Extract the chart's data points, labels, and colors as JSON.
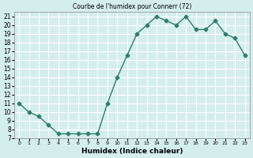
{
  "x": [
    0,
    1,
    2,
    3,
    4,
    5,
    6,
    7,
    8,
    9,
    10,
    11,
    12,
    13,
    14,
    15,
    16,
    17,
    18,
    19,
    20,
    21,
    22,
    23
  ],
  "y": [
    11.0,
    10.0,
    9.5,
    8.5,
    7.5,
    7.5,
    7.5,
    7.5,
    7.5,
    11.0,
    14.0,
    16.5,
    19.0,
    20.0,
    21.0,
    20.5,
    20.0,
    21.0,
    19.5,
    19.5,
    20.5,
    19.0,
    18.5,
    16.5
  ],
  "xtick_labels": [
    "0",
    "1",
    "2",
    "3",
    "4",
    "5",
    "6",
    "7",
    "8",
    "9",
    "10",
    "11",
    "12",
    "13",
    "14",
    "15",
    "16",
    "17",
    "18",
    "19",
    "20",
    "21",
    "22",
    "23"
  ],
  "yticks": [
    7,
    8,
    9,
    10,
    11,
    12,
    13,
    14,
    15,
    16,
    17,
    18,
    19,
    20,
    21
  ],
  "line_color": "#2e7d6e",
  "bg_color": "#d4eeed",
  "grid_color": "#ffffff",
  "title": "Courbe de l'humidex pour Connerr (72)",
  "xlabel": "Humidex (Indice chaleur)",
  "xlim": [
    -0.5,
    23.5
  ],
  "ylim": [
    7,
    21.5
  ]
}
